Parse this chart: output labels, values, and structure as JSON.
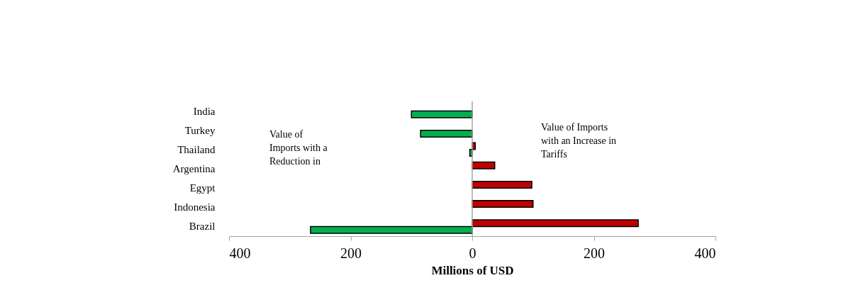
{
  "chart_data": {
    "type": "bar",
    "orientation": "horizontal",
    "xlabel": "Millions of USD",
    "categories": [
      "India",
      "Turkey",
      "Thailand",
      "Argentina",
      "Egypt",
      "Indonesia",
      "Brazil"
    ],
    "series": [
      {
        "color": "#c00000",
        "values": [
          null,
          null,
          5,
          37,
          98,
          100,
          273
        ]
      },
      {
        "color": "#00b050",
        "values": [
          -100,
          -85,
          -4,
          null,
          null,
          null,
          -266
        ]
      }
    ],
    "xlim": [
      -400,
      400
    ],
    "xticks": [
      {
        "value": -400,
        "label": "400"
      },
      {
        "value": -200,
        "label": "200"
      },
      0,
      200,
      400
    ],
    "annotations": [
      "Value of\nImports with a\nReduction in",
      "Value of Imports\nwith an Increase in\nTariffs"
    ],
    "legend": false
  }
}
